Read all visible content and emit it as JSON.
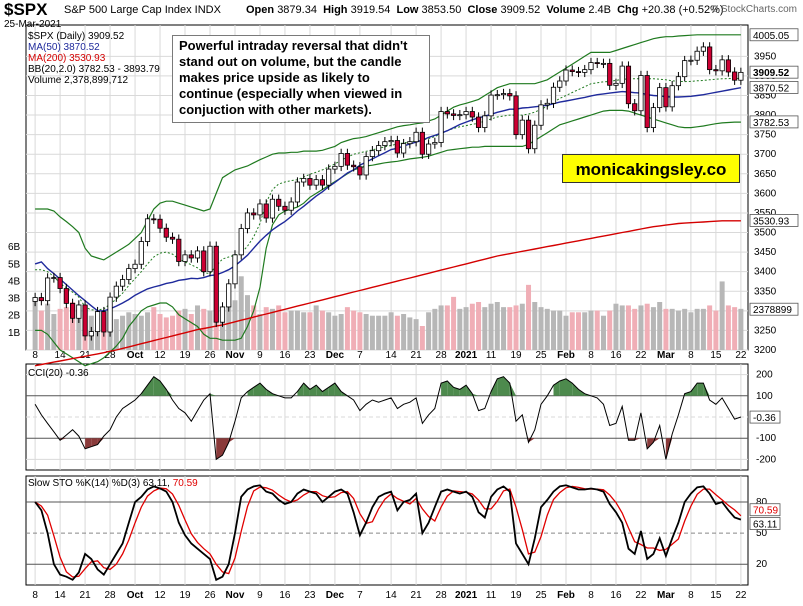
{
  "header": {
    "symbol": "$SPX",
    "name": "S&P 500 Large Cap Index  INDX",
    "date": "25-Mar-2021",
    "open_label": "Open",
    "open": "3879.34",
    "high_label": "High",
    "high": "3919.54",
    "low_label": "Low",
    "low": "3853.50",
    "close_label": "Close",
    "close": "3909.52",
    "volume_label": "Volume",
    "volume": "2.4B",
    "chg_label": "Chg",
    "chg": "+20.38 (+0.52%)",
    "credit": "© StockCharts.com"
  },
  "legend": {
    "price": "$SPX (Daily) 3909.52",
    "ma50": "MA(50) 3870.52",
    "ma200": "MA(200) 3530.93",
    "bb": "BB(20,2.0) 3782.53 - 3893.79",
    "volume": "Volume 2,378,899,712",
    "cci": "CCI(20) -0.36",
    "sto_prefix": "Slow STO %K(14) %D(3) 63.11,",
    "sto_suffix": "70.59"
  },
  "annotation": "Powerful intraday reversal that didn't stand out on volume, but the candle makes price upside as likely to continue (especially when viewed in conjuction with other markets).",
  "brand": "monicakingsley.co",
  "colors": {
    "up_candle": "#ffffff",
    "down_candle": "#cc0033",
    "ma50": "#1f2a9c",
    "ma200": "#d40000",
    "bollinger": "#1f7a1f",
    "volume_up": "#b7b7b7",
    "volume_down": "#f0aeb6",
    "cci_fill": "#4d8a4d",
    "cci_fill_neg": "#8a3a3a",
    "sto_k": "#000000",
    "sto_d": "#e00000"
  },
  "chart_data": {
    "type": "candlestick",
    "title": "$SPX S&P 500 Large Cap Index INDX",
    "x_tick_labels": [
      "8",
      "14",
      "21",
      "28",
      "Oct",
      "12",
      "19",
      "26",
      "Nov",
      "9",
      "16",
      "23",
      "Dec",
      "7",
      "14",
      "21",
      "28",
      "2021",
      "11",
      "19",
      "25",
      "Feb",
      "8",
      "16",
      "22",
      "Mar",
      "8",
      "15",
      "22"
    ],
    "price_axis": {
      "ylim": [
        3200,
        4030
      ],
      "ticks": [
        3200,
        3250,
        3300,
        3350,
        3400,
        3450,
        3500,
        3550,
        3600,
        3650,
        3700,
        3750,
        3800,
        3850,
        3900,
        3950
      ]
    },
    "price_axis_markers": [
      "4005.05",
      "3909.52",
      "3870.52",
      "3782.53",
      "3530.93",
      "2378899"
    ],
    "volume_axis": {
      "ticks": [
        "1B",
        "2B",
        "3B",
        "4B",
        "5B",
        "6B"
      ]
    },
    "cci_axis": {
      "ticks": [
        "200",
        "100",
        "0",
        "-100",
        "-200"
      ],
      "marker": "-0.36"
    },
    "sto_axis": {
      "ticks": [
        "80",
        "50",
        "20"
      ],
      "markers": [
        "70.59",
        "63.11"
      ]
    },
    "series": [
      {
        "name": "$SPX (Daily)",
        "values": [
          3334,
          3326,
          3384,
          3385,
          3357,
          3319,
          3281,
          3315,
          3236,
          3247,
          3298,
          3246,
          3335,
          3363,
          3380,
          3408,
          3419,
          3477,
          3535,
          3534,
          3511,
          3488,
          3483,
          3426,
          3443,
          3435,
          3453,
          3400,
          3465,
          3271,
          3310,
          3369,
          3443,
          3510,
          3550,
          3545,
          3573,
          3537,
          3585,
          3567,
          3557,
          3578,
          3629,
          3638,
          3621,
          3635,
          3621,
          3662,
          3669,
          3702,
          3672,
          3668,
          3647,
          3694,
          3709,
          3722,
          3732,
          3735,
          3703,
          3727,
          3732,
          3756,
          3700,
          3726,
          3730,
          3809,
          3803,
          3799,
          3801,
          3809,
          3795,
          3768,
          3798,
          3851,
          3852,
          3855,
          3849,
          3750,
          3787,
          3714,
          3774,
          3826,
          3830,
          3871,
          3887,
          3915,
          3911,
          3909,
          3916,
          3934,
          3932,
          3932,
          3876,
          3881,
          3925,
          3829,
          3811,
          3901,
          3768,
          3819,
          3870,
          3821,
          3875,
          3898,
          3939,
          3940,
          3963,
          3974,
          3916,
          3913,
          3941,
          3910,
          3889,
          3909
        ]
      },
      {
        "name": "MA(50)",
        "values": [
          3420,
          3425,
          3408,
          3395,
          3381,
          3367,
          3353,
          3339,
          3326,
          3313,
          3300,
          3300,
          3305,
          3312,
          3320,
          3329,
          3340,
          3348,
          3356,
          3361,
          3365,
          3370,
          3373,
          3378,
          3380,
          3383,
          3382,
          3385,
          3390,
          3392,
          3398,
          3405,
          3415,
          3428,
          3442,
          3460,
          3478,
          3493,
          3507,
          3518,
          3528,
          3541,
          3555,
          3567,
          3580,
          3593,
          3604,
          3617,
          3628,
          3640,
          3652,
          3660,
          3672,
          3680,
          3688,
          3696,
          3704,
          3712,
          3715,
          3721,
          3726,
          3731,
          3736,
          3743,
          3748,
          3754,
          3760,
          3768,
          3776,
          3782,
          3788,
          3793,
          3797,
          3802,
          3807,
          3811,
          3815,
          3815,
          3818,
          3819,
          3821,
          3823,
          3825,
          3829,
          3833,
          3836,
          3839,
          3842,
          3845,
          3849,
          3852,
          3854,
          3856,
          3858,
          3860,
          3859,
          3857,
          3856,
          3852,
          3850,
          3849,
          3847,
          3846,
          3846,
          3847,
          3848,
          3850,
          3852,
          3855,
          3858,
          3861,
          3864,
          3867,
          3870
        ]
      },
      {
        "name": "MA(200)",
        "values": [
          3160,
          3163,
          3166,
          3169,
          3172,
          3175,
          3178,
          3181,
          3184,
          3187,
          3190,
          3193,
          3197,
          3200,
          3204,
          3208,
          3212,
          3216,
          3220,
          3224,
          3228,
          3232,
          3236,
          3240,
          3244,
          3248,
          3252,
          3255,
          3258,
          3261,
          3264,
          3268,
          3272,
          3276,
          3280,
          3284,
          3288,
          3292,
          3296,
          3300,
          3304,
          3308,
          3312,
          3316,
          3320,
          3324,
          3328,
          3332,
          3336,
          3340,
          3344,
          3348,
          3352,
          3356,
          3360,
          3364,
          3368,
          3372,
          3376,
          3380,
          3384,
          3388,
          3392,
          3396,
          3400,
          3404,
          3408,
          3412,
          3416,
          3420,
          3424,
          3428,
          3432,
          3436,
          3440,
          3443,
          3446,
          3449,
          3452,
          3455,
          3458,
          3461,
          3464,
          3467,
          3470,
          3473,
          3476,
          3479,
          3482,
          3485,
          3488,
          3491,
          3494,
          3497,
          3500,
          3503,
          3506,
          3509,
          3512,
          3515,
          3517,
          3519,
          3521,
          3523,
          3524,
          3525,
          3526,
          3527,
          3528,
          3529,
          3530,
          3530,
          3530,
          3530
        ]
      },
      {
        "name": "BB Upper",
        "values": [
          3560,
          3560,
          3560,
          3555,
          3540,
          3528,
          3515,
          3500,
          3460,
          3440,
          3435,
          3430,
          3440,
          3450,
          3460,
          3470,
          3485,
          3500,
          3530,
          3560,
          3575,
          3580,
          3580,
          3575,
          3570,
          3565,
          3560,
          3555,
          3560,
          3600,
          3640,
          3650,
          3660,
          3665,
          3670,
          3678,
          3686,
          3693,
          3700,
          3703,
          3703,
          3705,
          3705,
          3708,
          3708,
          3708,
          3710,
          3715,
          3720,
          3730,
          3735,
          3740,
          3742,
          3745,
          3750,
          3755,
          3760,
          3765,
          3770,
          3773,
          3775,
          3778,
          3780,
          3785,
          3790,
          3800,
          3810,
          3820,
          3826,
          3830,
          3835,
          3840,
          3850,
          3860,
          3870,
          3875,
          3880,
          3880,
          3880,
          3880,
          3880,
          3885,
          3890,
          3900,
          3910,
          3920,
          3930,
          3940,
          3950,
          3960,
          3960,
          3960,
          3960,
          3965,
          3970,
          3975,
          3980,
          3985,
          3990,
          3995,
          3998,
          4000,
          4000,
          4002,
          4003,
          4004,
          4005,
          4005,
          4005,
          4005,
          4005,
          4005,
          4005,
          4005
        ]
      },
      {
        "name": "BB Lower",
        "values": [
          3250,
          3250,
          3240,
          3220,
          3200,
          3190,
          3180,
          3170,
          3160,
          3165,
          3170,
          3180,
          3195,
          3210,
          3230,
          3260,
          3280,
          3300,
          3310,
          3315,
          3320,
          3320,
          3310,
          3290,
          3280,
          3270,
          3260,
          3240,
          3230,
          3230,
          3225,
          3225,
          3225,
          3230,
          3260,
          3300,
          3360,
          3460,
          3520,
          3545,
          3555,
          3560,
          3565,
          3575,
          3590,
          3600,
          3610,
          3620,
          3630,
          3640,
          3650,
          3660,
          3665,
          3670,
          3672,
          3675,
          3678,
          3680,
          3682,
          3685,
          3688,
          3690,
          3692,
          3695,
          3700,
          3705,
          3710,
          3712,
          3714,
          3716,
          3718,
          3718,
          3720,
          3720,
          3720,
          3720,
          3720,
          3720,
          3720,
          3725,
          3735,
          3745,
          3755,
          3765,
          3775,
          3780,
          3785,
          3790,
          3795,
          3800,
          3805,
          3810,
          3812,
          3812,
          3812,
          3810,
          3805,
          3800,
          3795,
          3790,
          3785,
          3780,
          3775,
          3770,
          3768,
          3768,
          3770,
          3772,
          3775,
          3778,
          3780,
          3781,
          3782,
          3782
        ]
      },
      {
        "name": "Volume (B)",
        "values": [
          2.9,
          2.3,
          2.7,
          2.1,
          2.4,
          2.5,
          2.8,
          2.4,
          2.2,
          2.0,
          2.3,
          1.9,
          2.3,
          1.8,
          2.0,
          2.2,
          2.1,
          2.0,
          2.2,
          2.5,
          2.1,
          1.9,
          2.0,
          2.3,
          2.4,
          2.1,
          2.6,
          2.4,
          2.3,
          2.3,
          2.3,
          2.7,
          2.9,
          4.3,
          3.2,
          2.6,
          2.1,
          2.5,
          2.4,
          2.6,
          2.2,
          2.3,
          2.3,
          2.2,
          2.2,
          2.6,
          2.3,
          2.2,
          2.0,
          2.1,
          2.5,
          2.3,
          2.2,
          2.1,
          2.0,
          2.0,
          2.0,
          2.2,
          2.0,
          2.1,
          1.9,
          1.8,
          1.4,
          2.2,
          2.4,
          2.6,
          2.6,
          3.1,
          2.4,
          2.5,
          2.7,
          2.8,
          2.5,
          2.7,
          2.8,
          2.5,
          2.5,
          2.6,
          2.7,
          3.8,
          2.8,
          2.5,
          2.4,
          2.3,
          2.3,
          2.0,
          2.2,
          2.2,
          2.2,
          2.3,
          2.3,
          2.0,
          2.3,
          2.7,
          2.6,
          2.6,
          2.4,
          2.6,
          2.7,
          2.5,
          2.8,
          2.4,
          2.4,
          2.3,
          2.4,
          2.2,
          2.4,
          2.4,
          2.6,
          2.3,
          4.0,
          2.6,
          2.5,
          2.4
        ]
      }
    ],
    "cci_values": [
      60,
      10,
      -30,
      -70,
      -110,
      -85,
      -60,
      -90,
      -150,
      -140,
      -130,
      -90,
      -60,
      0,
      40,
      60,
      80,
      110,
      150,
      190,
      170,
      130,
      80,
      40,
      20,
      -20,
      30,
      80,
      110,
      -200,
      -180,
      -120,
      -20,
      90,
      120,
      140,
      160,
      130,
      110,
      100,
      90,
      90,
      120,
      160,
      130,
      150,
      120,
      140,
      160,
      120,
      100,
      80,
      30,
      60,
      80,
      70,
      80,
      90,
      40,
      60,
      70,
      90,
      -30,
      10,
      40,
      160,
      170,
      140,
      130,
      150,
      110,
      30,
      40,
      120,
      180,
      190,
      160,
      -20,
      10,
      -120,
      -60,
      60,
      100,
      150,
      170,
      180,
      160,
      130,
      110,
      100,
      90,
      60,
      -40,
      -30,
      50,
      -110,
      -110,
      20,
      -150,
      -120,
      -40,
      -200,
      -80,
      10,
      110,
      120,
      160,
      160,
      80,
      60,
      90,
      40,
      -10,
      0
    ],
    "sto_k": [
      80,
      72,
      50,
      20,
      10,
      8,
      5,
      12,
      30,
      25,
      15,
      10,
      20,
      30,
      40,
      60,
      80,
      85,
      92,
      95,
      93,
      90,
      80,
      60,
      48,
      40,
      35,
      30,
      25,
      5,
      8,
      20,
      50,
      85,
      92,
      95,
      96,
      90,
      88,
      82,
      78,
      80,
      88,
      92,
      90,
      88,
      80,
      85,
      90,
      92,
      88,
      70,
      48,
      60,
      75,
      85,
      88,
      90,
      72,
      80,
      82,
      88,
      50,
      60,
      75,
      90,
      92,
      90,
      88,
      90,
      85,
      70,
      65,
      85,
      92,
      95,
      90,
      40,
      30,
      20,
      45,
      75,
      82,
      90,
      95,
      96,
      94,
      92,
      92,
      93,
      92,
      90,
      78,
      70,
      60,
      35,
      30,
      52,
      25,
      30,
      45,
      28,
      45,
      60,
      80,
      88,
      94,
      95,
      88,
      78,
      80,
      72,
      65,
      63
    ]
  }
}
